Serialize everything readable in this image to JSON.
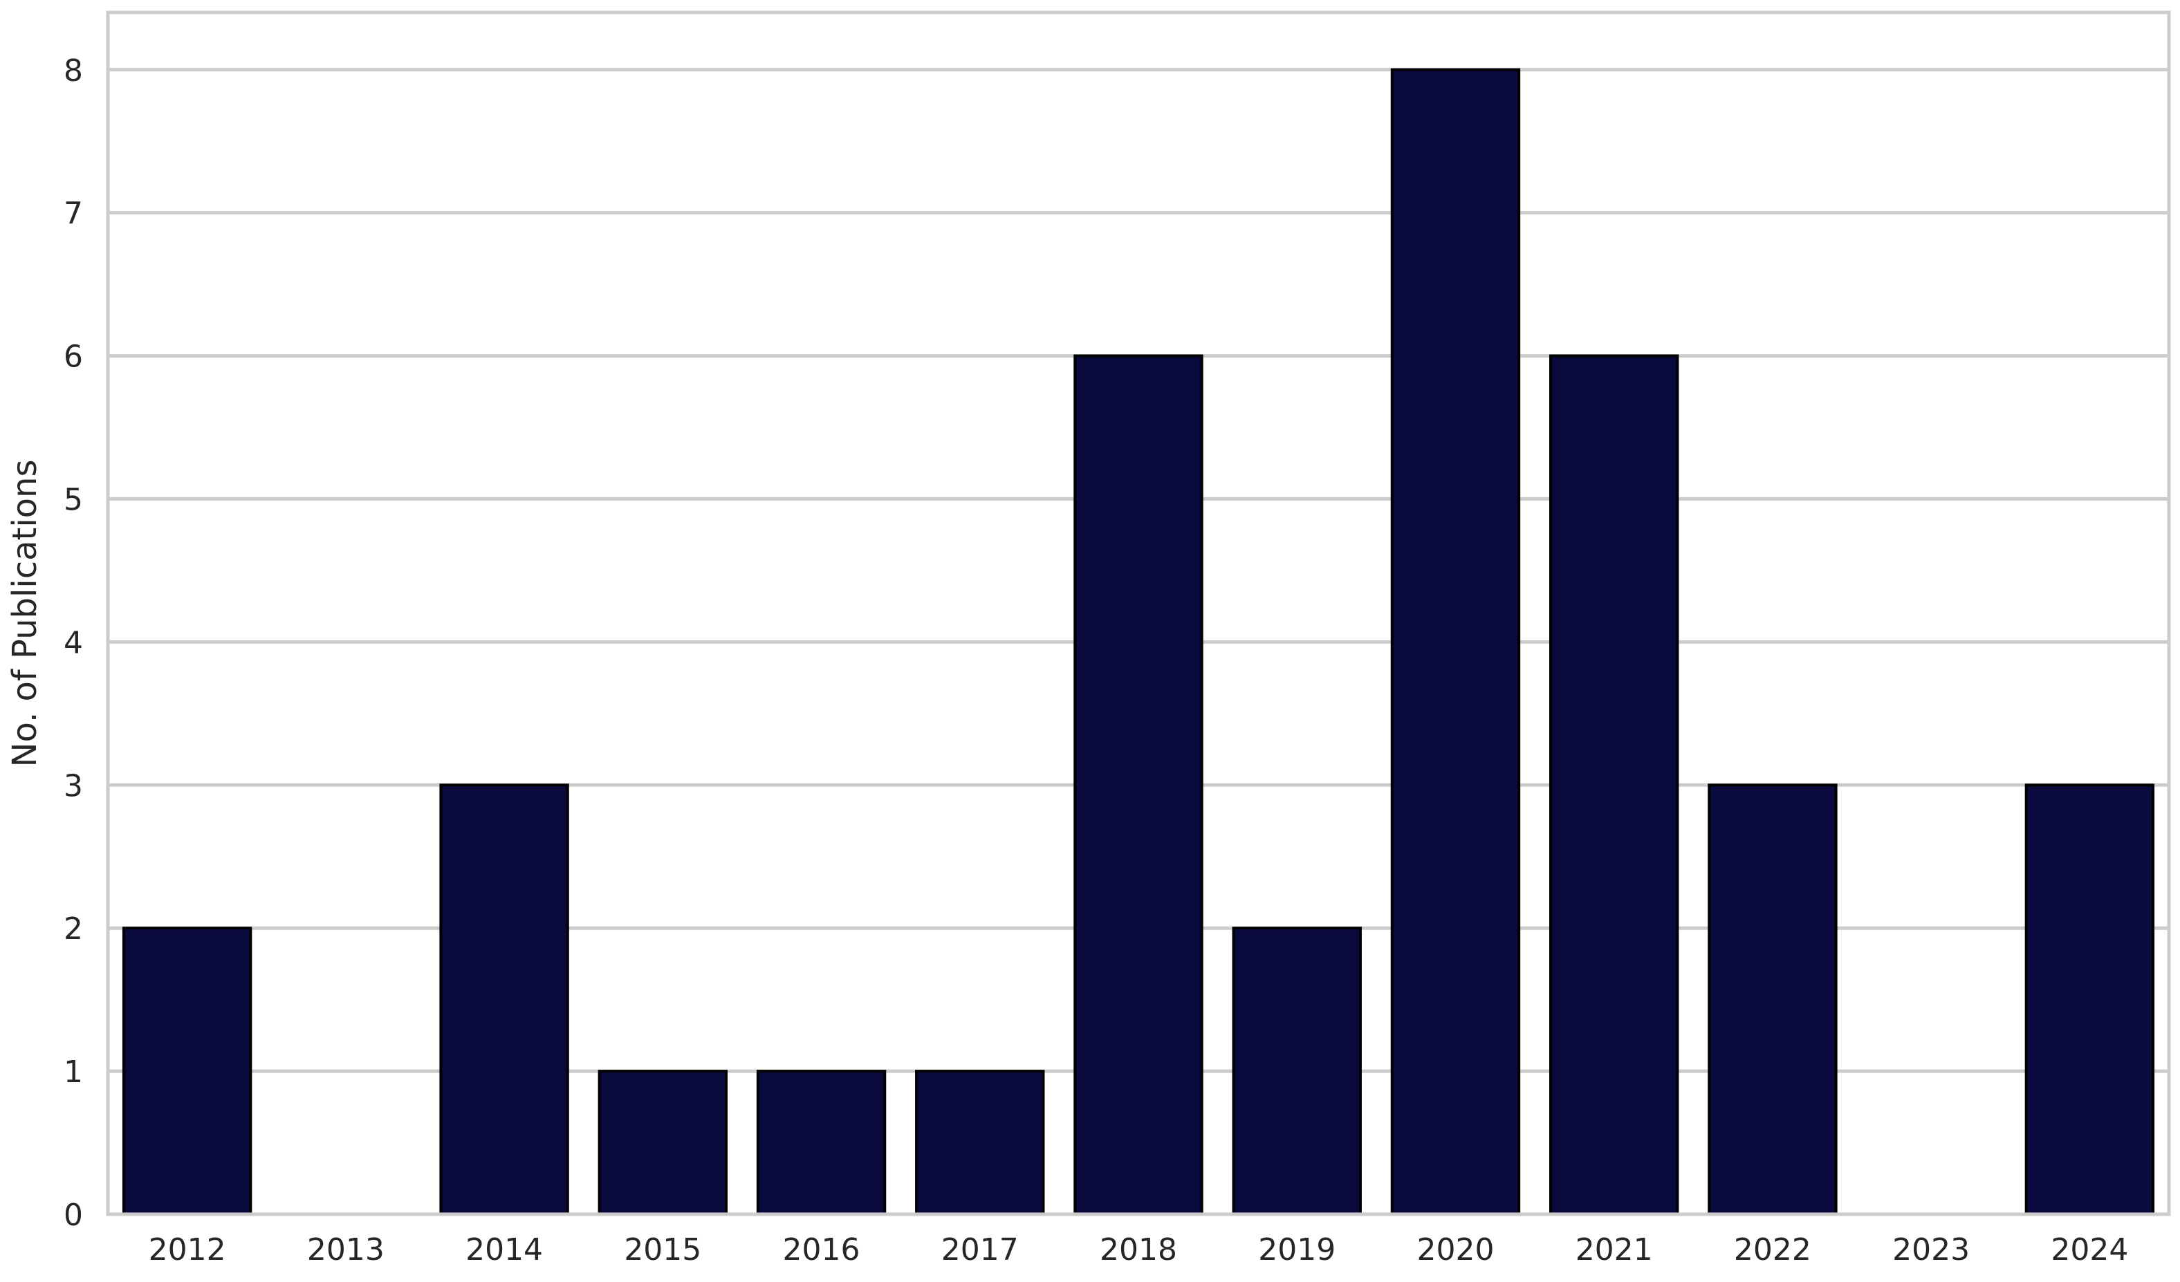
{
  "chart_data": {
    "type": "bar",
    "categories": [
      "2012",
      "2013",
      "2014",
      "2015",
      "2016",
      "2017",
      "2018",
      "2019",
      "2020",
      "2021",
      "2022",
      "2023",
      "2024"
    ],
    "values": [
      2,
      0,
      3,
      1,
      1,
      1,
      6,
      2,
      8,
      6,
      3,
      0,
      3
    ],
    "title": "",
    "xlabel": "",
    "ylabel": "No. of Publications",
    "ylim": [
      0,
      8.4
    ],
    "yticks": [
      0,
      1,
      2,
      3,
      4,
      5,
      6,
      7,
      8
    ],
    "grid": "horizontal",
    "colors": {
      "bar": "#0a0a3f",
      "bar_edge": "#000000",
      "grid": "#cccccc",
      "frame": "#cccccc",
      "text": "#262626"
    }
  }
}
